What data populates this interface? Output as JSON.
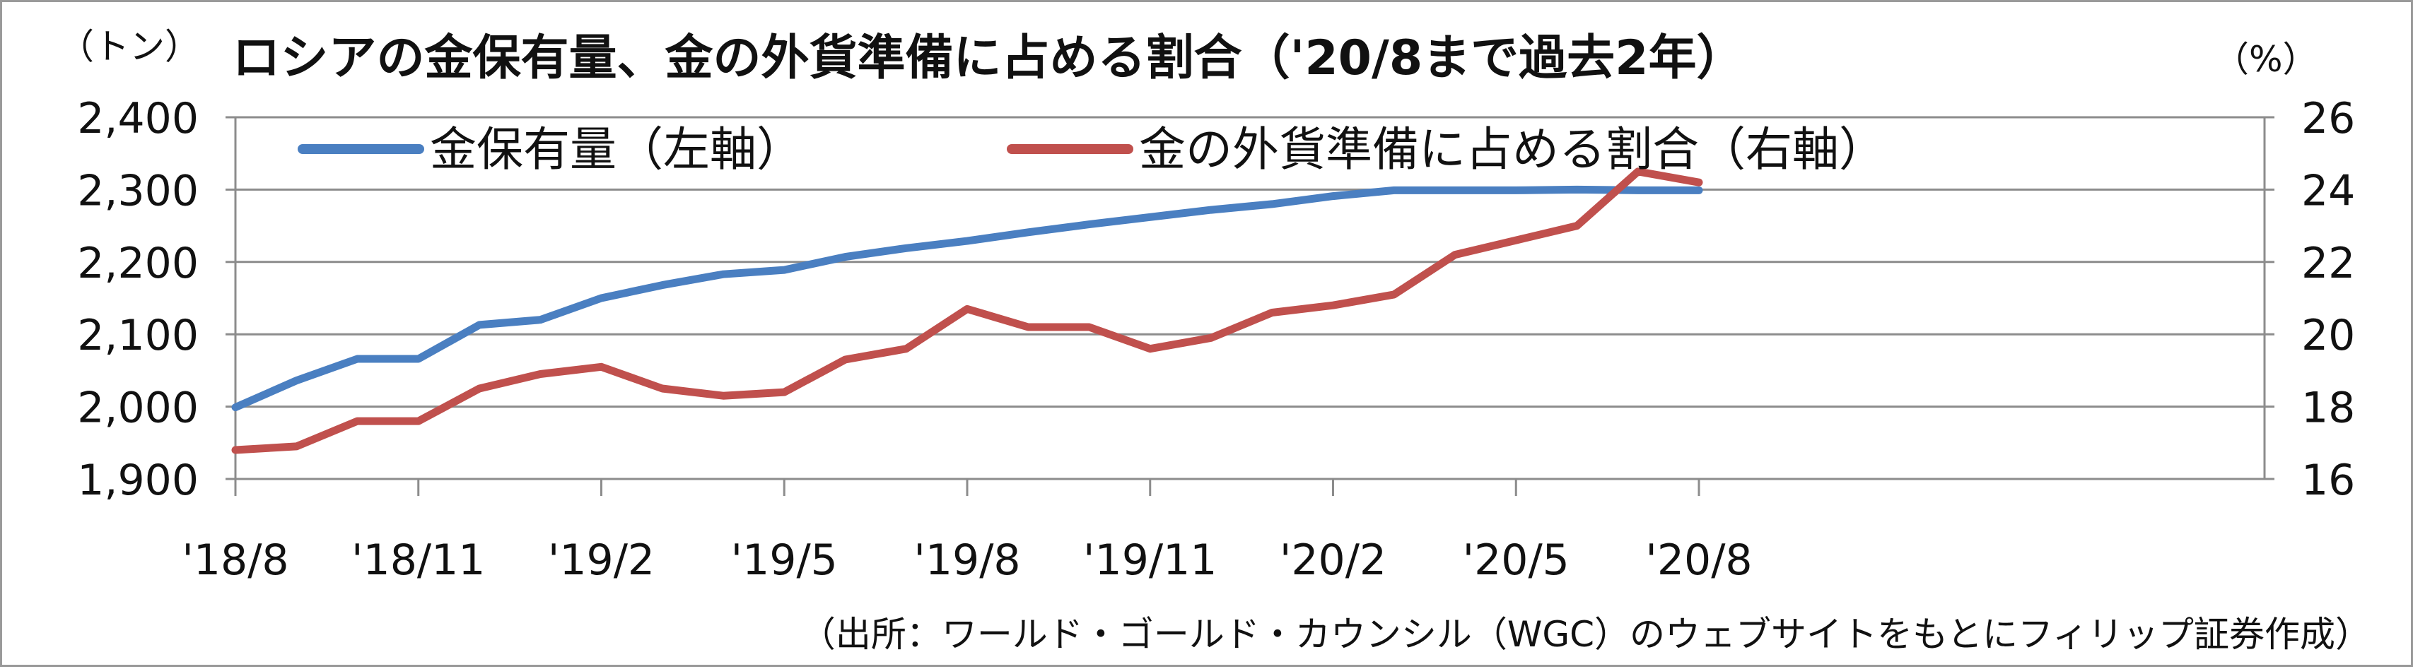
{
  "colors": {
    "gold_holdings": "#4a7fc1",
    "gold_share": "#c0504d",
    "grid": "#8c8c8c",
    "axis": "#8c8c8c"
  },
  "chart_data": {
    "type": "line",
    "title": "ロシアの金保有量、金の外貨準備に占める割合（'20/8まで過去2年）",
    "left_unit": "（トン）",
    "right_unit": "（%）",
    "x": [
      "'18/8",
      "'18/9",
      "'18/10",
      "'18/11",
      "'18/12",
      "'19/1",
      "'19/2",
      "'19/3",
      "'19/4",
      "'19/5",
      "'19/6",
      "'19/7",
      "'19/8",
      "'19/9",
      "'19/10",
      "'19/11",
      "'19/12",
      "'20/1",
      "'20/2",
      "'20/3",
      "'20/4",
      "'20/5",
      "'20/6",
      "'20/7",
      "'20/8"
    ],
    "x_tick_labels": [
      "'18/8",
      "'18/11",
      "'19/2",
      "'19/5",
      "'19/8",
      "'19/11",
      "'20/2",
      "'20/5",
      "'20/8"
    ],
    "y_left": {
      "ylim": [
        1900,
        2400
      ],
      "ticks": [
        "1,900",
        "2,000",
        "2,100",
        "2,200",
        "2,300",
        "2,400"
      ]
    },
    "y_right": {
      "ylim": [
        16,
        26
      ],
      "ticks": [
        "16",
        "18",
        "20",
        "22",
        "24",
        "26"
      ]
    },
    "grid": true,
    "legend_position": "top",
    "series": [
      {
        "name": "金保有量（左軸）",
        "axis": "left",
        "values": [
          1999,
          2036,
          2066,
          2066,
          2113,
          2120,
          2150,
          2168,
          2183,
          2189,
          2207,
          2219,
          2229,
          2241,
          2252,
          2262,
          2272,
          2280,
          2291,
          2299,
          2299,
          2299,
          2300,
          2299,
          2299
        ]
      },
      {
        "name": "金の外貨準備に占める割合（右軸）",
        "axis": "right",
        "values": [
          16.8,
          16.9,
          17.6,
          17.6,
          18.5,
          18.9,
          19.1,
          18.5,
          18.3,
          18.4,
          19.3,
          19.6,
          20.7,
          20.2,
          20.2,
          19.6,
          19.9,
          20.6,
          20.8,
          21.1,
          22.2,
          22.6,
          23.0,
          24.5,
          24.2
        ]
      }
    ],
    "source_note": "（出所：ワールド・ゴールド・カウンシル（WGC）のウェブサイトをもとにフィリップ証券作成）"
  }
}
